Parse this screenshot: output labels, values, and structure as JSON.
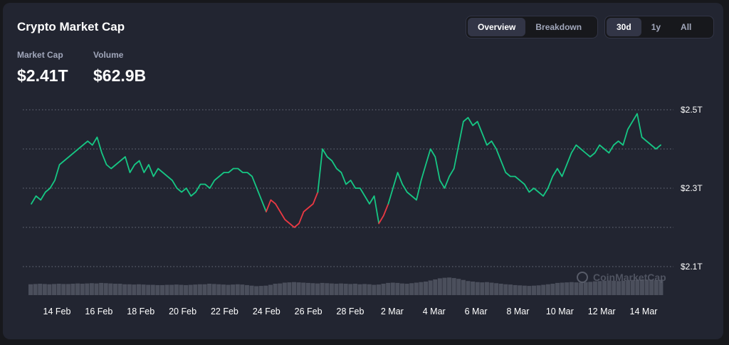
{
  "header": {
    "title": "Crypto Market Cap",
    "view_tabs": [
      "Overview",
      "Breakdown"
    ],
    "active_view": "Overview",
    "range_tabs": [
      "30d",
      "1y",
      "All"
    ],
    "active_range": "30d"
  },
  "stats": {
    "market_cap_label": "Market Cap",
    "market_cap_value": "$2.41T",
    "volume_label": "Volume",
    "volume_value": "$62.9B"
  },
  "watermark": "CoinMarketCap",
  "colors": {
    "up": "#16c784",
    "down": "#ea3943",
    "volume": "#4b4f5c",
    "background": "#222531",
    "text_muted": "#a1a7bb"
  },
  "chart_data": {
    "type": "line",
    "series": [
      {
        "values": [
          2.26,
          2.28,
          2.27,
          2.29,
          2.3,
          2.32,
          2.36,
          2.37,
          2.38,
          2.39,
          2.4,
          2.41,
          2.42,
          2.41,
          2.43,
          2.39,
          2.36,
          2.35,
          2.36,
          2.37,
          2.38,
          2.34,
          2.36,
          2.37,
          2.34,
          2.36,
          2.33,
          2.35,
          2.34,
          2.33,
          2.32,
          2.3,
          2.29,
          2.3,
          2.28,
          2.29,
          2.31,
          2.31,
          2.3,
          2.32,
          2.33,
          2.34,
          2.34,
          2.35,
          2.35,
          2.34,
          2.34,
          2.33,
          2.3,
          2.27,
          2.24,
          2.27,
          2.26,
          2.24,
          2.22,
          2.21,
          2.2,
          2.21,
          2.24,
          2.25,
          2.26,
          2.29,
          2.4,
          2.38,
          2.37,
          2.35,
          2.34,
          2.31,
          2.32,
          2.3,
          2.3,
          2.28,
          2.26,
          2.28,
          2.21,
          2.23,
          2.26,
          2.3,
          2.34,
          2.31,
          2.29,
          2.28,
          2.27,
          2.32,
          2.36,
          2.4,
          2.38,
          2.32,
          2.3,
          2.33,
          2.35,
          2.41,
          2.47,
          2.48,
          2.46,
          2.47,
          2.44,
          2.41,
          2.42,
          2.4,
          2.37,
          2.34,
          2.33,
          2.33,
          2.32,
          2.31,
          2.29,
          2.3,
          2.29,
          2.28,
          2.3,
          2.33,
          2.35,
          2.33,
          2.36,
          2.39,
          2.41,
          2.4,
          2.39,
          2.38,
          2.39,
          2.41,
          2.4,
          2.39,
          2.41,
          2.42,
          2.41,
          2.45,
          2.47,
          2.49,
          2.43,
          2.42,
          2.41,
          2.4,
          2.41
        ],
        "down_segments": [
          [
            50,
            61
          ],
          [
            74,
            76
          ]
        ]
      }
    ],
    "volume": [
      0.4,
      0.41,
      0.42,
      0.41,
      0.4,
      0.41,
      0.42,
      0.41,
      0.41,
      0.42,
      0.43,
      0.42,
      0.43,
      0.44,
      0.43,
      0.45,
      0.44,
      0.43,
      0.42,
      0.42,
      0.4,
      0.4,
      0.39,
      0.4,
      0.39,
      0.38,
      0.38,
      0.37,
      0.37,
      0.38,
      0.38,
      0.39,
      0.38,
      0.37,
      0.38,
      0.39,
      0.4,
      0.4,
      0.42,
      0.41,
      0.4,
      0.39,
      0.38,
      0.39,
      0.4,
      0.39,
      0.37,
      0.35,
      0.33,
      0.34,
      0.35,
      0.38,
      0.42,
      0.43,
      0.46,
      0.47,
      0.48,
      0.47,
      0.46,
      0.45,
      0.44,
      0.43,
      0.45,
      0.44,
      0.43,
      0.42,
      0.43,
      0.42,
      0.41,
      0.42,
      0.4,
      0.41,
      0.4,
      0.38,
      0.39,
      0.42,
      0.45,
      0.46,
      0.45,
      0.43,
      0.42,
      0.44,
      0.46,
      0.48,
      0.5,
      0.54,
      0.58,
      0.62,
      0.64,
      0.65,
      0.63,
      0.6,
      0.56,
      0.52,
      0.5,
      0.48,
      0.47,
      0.48,
      0.46,
      0.44,
      0.42,
      0.4,
      0.39,
      0.37,
      0.36,
      0.35,
      0.34,
      0.35,
      0.36,
      0.38,
      0.4,
      0.42,
      0.45,
      0.46,
      0.47,
      0.48,
      0.47,
      0.46,
      0.48,
      0.49,
      0.51,
      0.52,
      0.53,
      0.54,
      0.53,
      0.52,
      0.53,
      0.54,
      0.56,
      0.57,
      0.58,
      0.57,
      0.56,
      0.55,
      0.56
    ],
    "x_ticks": [
      "14 Feb",
      "16 Feb",
      "18 Feb",
      "20 Feb",
      "22 Feb",
      "24 Feb",
      "26 Feb",
      "28 Feb",
      "2 Mar",
      "4 Mar",
      "6 Mar",
      "8 Mar",
      "10 Mar",
      "12 Mar",
      "14 Mar"
    ],
    "y_ticks": [
      "$2.5T",
      "$2.3T",
      "$2.1T"
    ],
    "ylim": [
      2.1,
      2.5
    ],
    "grid": true,
    "legend": "none"
  }
}
